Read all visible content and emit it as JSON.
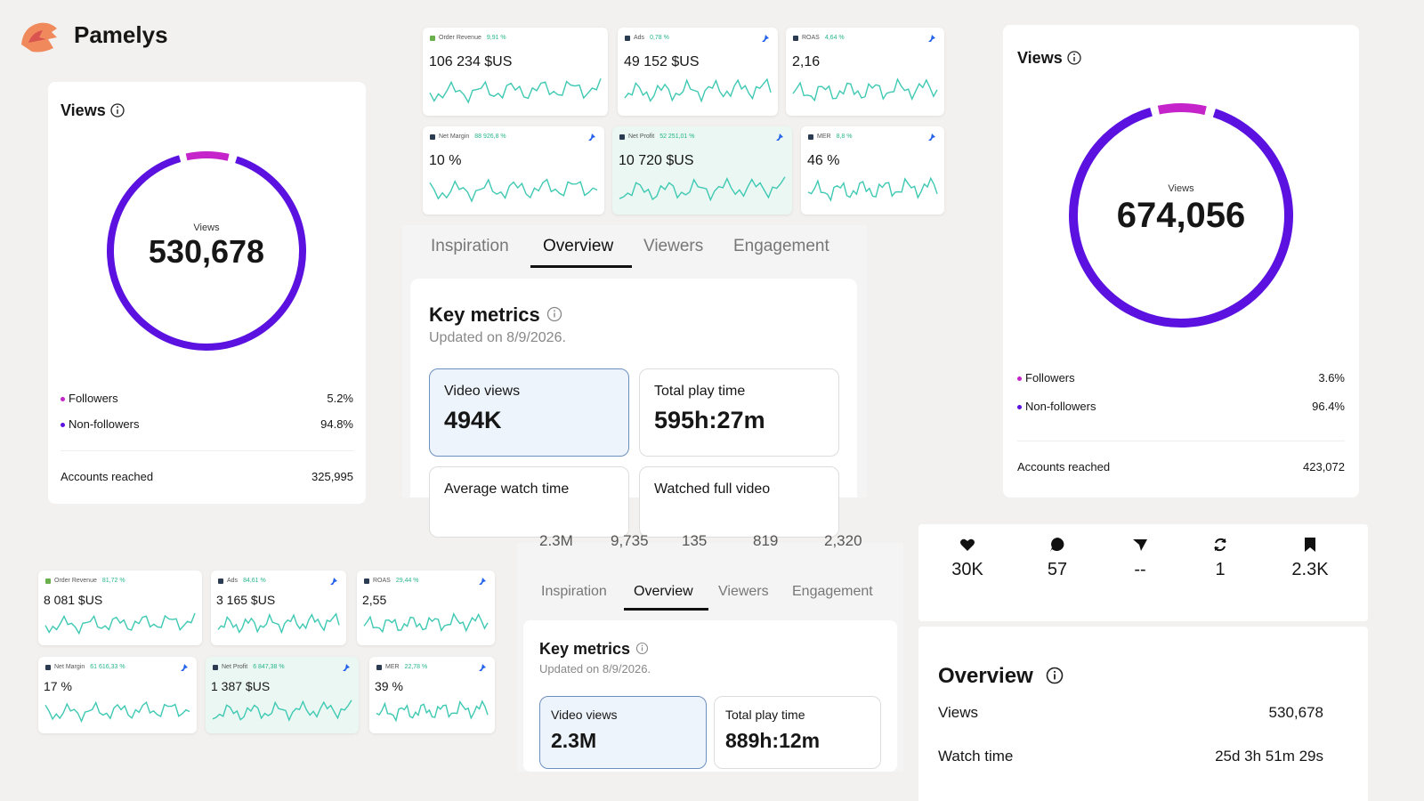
{
  "brand": "Pamelys",
  "views_left": {
    "title": "Views",
    "center_label": "Views",
    "value": "530,678",
    "legend": [
      {
        "label": "Followers",
        "value": "5.2%"
      },
      {
        "label": "Non-followers",
        "value": "94.8%"
      }
    ],
    "footer": {
      "label": "Accounts reached",
      "value": "325,995"
    }
  },
  "top_tiles": [
    {
      "label": "Order Revenue",
      "change": "9,91 %",
      "value": "106 234 $US"
    },
    {
      "label": "Ads",
      "change": "0,78 %",
      "value": "49 152 $US"
    },
    {
      "label": "ROAS",
      "change": "4,64 %",
      "value": "2,16"
    },
    {
      "label": "Net Margin",
      "change": "88 926,8 %",
      "value": "10 %"
    },
    {
      "label": "Net Profit",
      "change": "52 251,01 %",
      "value": "10 720 $US"
    },
    {
      "label": "MER",
      "change": "8,8 %",
      "value": "46 %"
    }
  ],
  "tabs_top": [
    "Inspiration",
    "Overview",
    "Viewers",
    "Engagement"
  ],
  "key_metrics_top": {
    "title": "Key metrics",
    "updated": "Updated on 8/9/2026.",
    "metrics": [
      {
        "label": "Video views",
        "value": "494K"
      },
      {
        "label": "Total play time",
        "value": "595h:27m"
      },
      {
        "label": "Average watch time"
      },
      {
        "label": "Watched full video"
      }
    ]
  },
  "views_right": {
    "title": "Views",
    "center_label": "Views",
    "value": "674,056",
    "legend": [
      {
        "label": "Followers",
        "value": "3.6%"
      },
      {
        "label": "Non-followers",
        "value": "96.4%"
      }
    ],
    "footer": {
      "label": "Accounts reached",
      "value": "423,072"
    }
  },
  "bottom_tiles": [
    {
      "label": "Order Revenue",
      "change": "81,72 %",
      "value": "8 081 $US"
    },
    {
      "label": "Ads",
      "change": "84,61 %",
      "value": "3 165 $US"
    },
    {
      "label": "ROAS",
      "change": "29,44 %",
      "value": "2,55"
    },
    {
      "label": "Net Margin",
      "change": "61 616,33 %",
      "value": "17 %"
    },
    {
      "label": "Net Profit",
      "change": "6 847,38 %",
      "value": "1 387 $US"
    },
    {
      "label": "MER",
      "change": "22,78 %",
      "value": "39 %"
    }
  ],
  "cut_stats": [
    "2.3M",
    "9,735",
    "135",
    "819",
    "2,320"
  ],
  "tabs_bottom": [
    "Inspiration",
    "Overview",
    "Viewers",
    "Engagement"
  ],
  "key_metrics_bottom": {
    "title": "Key metrics",
    "updated": "Updated on 8/9/2026.",
    "metrics": [
      {
        "label": "Video views",
        "value": "2.3M"
      },
      {
        "label": "Total play time",
        "value": "889h:12m"
      }
    ]
  },
  "engagement_stats": [
    "30K",
    "57",
    "--",
    "1",
    "2.3K"
  ],
  "overview": {
    "title": "Overview",
    "rows": [
      {
        "label": "Views",
        "value": "530,678"
      },
      {
        "label": "Watch time",
        "value": "25d 3h 51m 29s"
      }
    ]
  }
}
